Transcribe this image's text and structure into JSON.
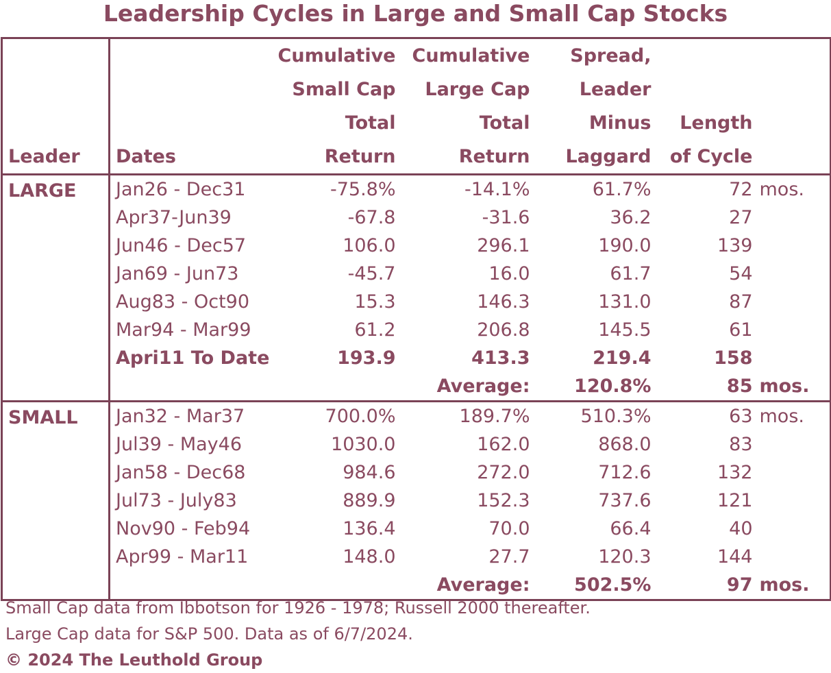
{
  "title": "Leadership Cycles in Large and Small Cap Stocks",
  "headers": {
    "leader": "Leader",
    "dates": "Dates",
    "small_cap": [
      "Cumulative",
      "Small Cap",
      "Total",
      "Return"
    ],
    "large_cap": [
      "Cumulative",
      "Large Cap",
      "Total",
      "Return"
    ],
    "spread": [
      "Spread,",
      "Leader",
      "Minus",
      "Laggard"
    ],
    "length": [
      "Length",
      "of Cycle"
    ]
  },
  "groups": [
    {
      "leader": "LARGE",
      "rows": [
        {
          "dates": "Jan26 - Dec31",
          "small": "-75.8%",
          "large": "-14.1%",
          "spread": "61.7%",
          "length": "72",
          "unit": "mos.",
          "bold": false
        },
        {
          "dates": "Apr37-Jun39",
          "small": "-67.8",
          "large": "-31.6",
          "spread": "36.2",
          "length": "27",
          "unit": "",
          "bold": false
        },
        {
          "dates": "Jun46 - Dec57",
          "small": "106.0",
          "large": "296.1",
          "spread": "190.0",
          "length": "139",
          "unit": "",
          "bold": false
        },
        {
          "dates": "Jan69 - Jun73",
          "small": "-45.7",
          "large": "16.0",
          "spread": "61.7",
          "length": "54",
          "unit": "",
          "bold": false
        },
        {
          "dates": "Aug83 - Oct90",
          "small": "15.3",
          "large": "146.3",
          "spread": "131.0",
          "length": "87",
          "unit": "",
          "bold": false
        },
        {
          "dates": "Mar94 - Mar99",
          "small": "61.2",
          "large": "206.8",
          "spread": "145.5",
          "length": "61",
          "unit": "",
          "bold": false
        },
        {
          "dates": "Apri11 To Date",
          "small": "193.9",
          "large": "413.3",
          "spread": "219.4",
          "length": "158",
          "unit": "",
          "bold": true
        }
      ],
      "average": {
        "label": "Average:",
        "spread": "120.8%",
        "length": "85",
        "unit": "mos."
      }
    },
    {
      "leader": "SMALL",
      "rows": [
        {
          "dates": "Jan32 - Mar37",
          "small": "700.0%",
          "large": "189.7%",
          "spread": "510.3%",
          "length": "63",
          "unit": "mos.",
          "bold": false
        },
        {
          "dates": "Jul39 - May46",
          "small": "1030.0",
          "large": "162.0",
          "spread": "868.0",
          "length": "83",
          "unit": "",
          "bold": false
        },
        {
          "dates": "Jan58 - Dec68",
          "small": "984.6",
          "large": "272.0",
          "spread": "712.6",
          "length": "132",
          "unit": "",
          "bold": false
        },
        {
          "dates": "Jul73 - July83",
          "small": "889.9",
          "large": "152.3",
          "spread": "737.6",
          "length": "121",
          "unit": "",
          "bold": false
        },
        {
          "dates": "Nov90 - Feb94",
          "small": "136.4",
          "large": "70.0",
          "spread": "66.4",
          "length": "40",
          "unit": "",
          "bold": false
        },
        {
          "dates": "Apr99 - Mar11",
          "small": "148.0",
          "large": "27.7",
          "spread": "120.3",
          "length": "144",
          "unit": "",
          "bold": false
        }
      ],
      "average": {
        "label": "Average:",
        "spread": "502.5%",
        "length": "97",
        "unit": "mos."
      }
    }
  ],
  "notes": [
    "Small Cap data from Ibbotson for 1926 - 1978; Russell 2000 thereafter.",
    "Large Cap data for S&P 500. Data as of 6/7/2024."
  ],
  "copyright": "© 2024 The Leuthold Group",
  "colors": {
    "text": "#8a4a60",
    "border": "#7a4256"
  }
}
